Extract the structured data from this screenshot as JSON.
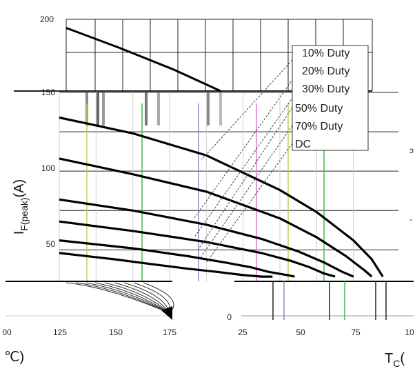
{
  "chart_data": [
    {
      "type": "line",
      "title": "",
      "xlabel_rest": "°C)",
      "ylabel": {
        "main": "I",
        "sub": "F(peak)",
        "unit": "(A)"
      },
      "xlim": [
        0,
        90
      ],
      "ylim": [
        30,
        150
      ],
      "y_ticks": [
        "50",
        "100",
        "150"
      ],
      "grid": true,
      "legend_position": "top-right",
      "legend": [
        "10% Duty",
        "20% Duty",
        "30% Duty",
        "50% Duty",
        "70% Duty",
        "DC"
      ],
      "series": [
        {
          "name": "10% Duty",
          "x": [
            0,
            20,
            40,
            60,
            70,
            80,
            85,
            88
          ],
          "y": [
            134,
            124,
            110,
            88,
            74,
            56,
            44,
            33
          ]
        },
        {
          "name": "20% Duty",
          "x": [
            0,
            20,
            40,
            60,
            70,
            78,
            83,
            85
          ],
          "y": [
            108,
            98,
            87,
            70,
            58,
            46,
            37,
            33
          ]
        },
        {
          "name": "30% Duty",
          "x": [
            0,
            20,
            40,
            55,
            65,
            72,
            77,
            80
          ],
          "y": [
            82,
            75,
            66,
            57,
            49,
            42,
            36,
            33
          ]
        },
        {
          "name": "50% Duty",
          "x": [
            0,
            20,
            40,
            55,
            63,
            68,
            72,
            75
          ],
          "y": [
            68,
            62,
            55,
            48,
            43,
            39,
            35,
            33
          ]
        },
        {
          "name": "70% Duty",
          "x": [
            0,
            20,
            35,
            45,
            52,
            57,
            62,
            64
          ],
          "y": [
            56,
            51,
            46,
            42,
            39,
            36,
            34,
            33
          ]
        },
        {
          "name": "DC",
          "x": [
            0,
            15,
            25,
            35,
            43,
            50,
            55,
            58
          ],
          "y": [
            48,
            44,
            41,
            38,
            36,
            34,
            33,
            33
          ]
        }
      ],
      "colors": {
        "curve": "#000000",
        "grid": "#222222",
        "pointer": "#444444"
      }
    },
    {
      "type": "line",
      "xlabel_rest": "℃)",
      "x_ticks": [
        "00",
        "125",
        "150",
        "175"
      ],
      "series": [],
      "colors": {
        "curve": "#000000"
      }
    },
    {
      "type": "line",
      "xlabel_main": "T",
      "xlabel_sub": "C",
      "xlabel_rest": "(",
      "x_ticks": [
        "0",
        "25",
        "50",
        "75",
        "10"
      ],
      "series": [],
      "colors": {
        "curve": "#000000"
      }
    },
    {
      "type": "line",
      "y_ticks": [
        "200",
        "150"
      ],
      "ylim": [
        150,
        200
      ],
      "series": [
        {
          "x": [
            0,
            40,
            80,
            115
          ],
          "y": [
            194,
            180,
            165,
            150
          ]
        }
      ],
      "colors": {
        "curve": "#000000"
      }
    }
  ]
}
